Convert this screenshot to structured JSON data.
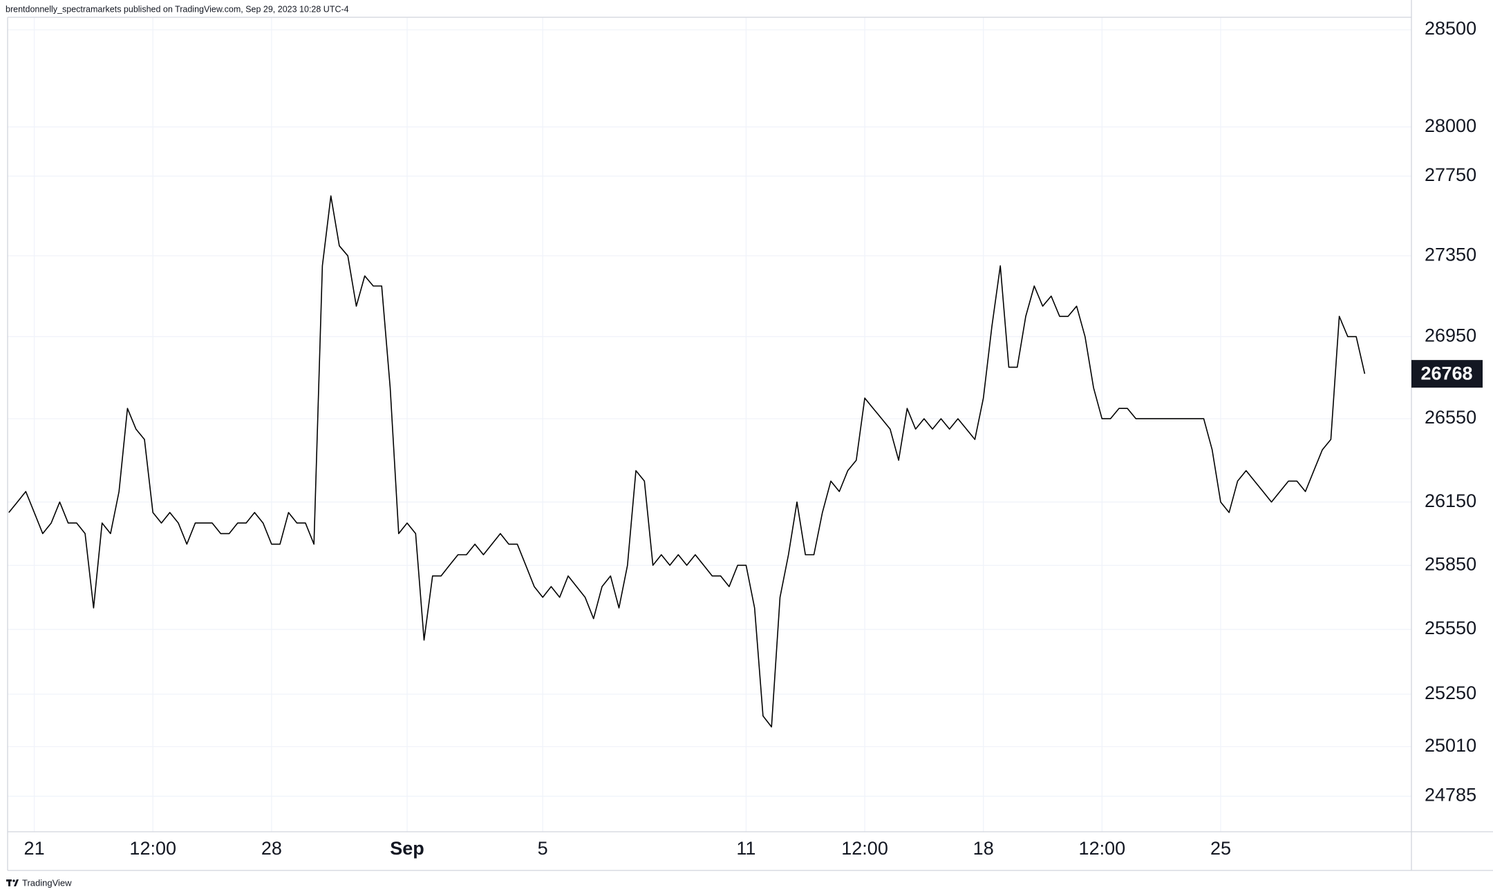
{
  "header": "brentdonnelly_spectramarkets published on TradingView.com, Sep 29, 2023 10:28 UTC-4",
  "footer": "TradingView",
  "chart_data": {
    "type": "line",
    "categories": [
      null,
      null,
      null,
      "21",
      null,
      null,
      null,
      null,
      null,
      null,
      null,
      null,
      null,
      null,
      null,
      null,
      null,
      "12:00",
      null,
      null,
      null,
      null,
      null,
      null,
      null,
      null,
      null,
      null,
      null,
      null,
      null,
      "28",
      null,
      null,
      null,
      null,
      null,
      null,
      null,
      null,
      null,
      null,
      null,
      null,
      null,
      null,
      null,
      "Sep",
      null,
      null,
      null,
      null,
      null,
      null,
      null,
      null,
      null,
      null,
      null,
      null,
      null,
      null,
      null,
      "5",
      null,
      null,
      null,
      null,
      null,
      null,
      null,
      null,
      null,
      null,
      null,
      null,
      null,
      null,
      null,
      null,
      null,
      null,
      null,
      null,
      null,
      null,
      null,
      "11",
      null,
      null,
      null,
      null,
      null,
      null,
      null,
      null,
      null,
      null,
      null,
      null,
      null,
      "12:00",
      null,
      null,
      null,
      null,
      null,
      null,
      null,
      null,
      null,
      null,
      null,
      null,
      null,
      "18",
      null,
      null,
      null,
      null,
      null,
      null,
      null,
      null,
      null,
      null,
      null,
      null,
      null,
      "12:00",
      null,
      null,
      null,
      null,
      null,
      null,
      null,
      null,
      null,
      null,
      null,
      null,
      null,
      "25",
      null,
      null,
      null,
      null,
      null,
      null,
      null,
      null,
      null,
      null,
      null,
      null,
      null,
      null,
      null,
      null,
      null
    ],
    "series": [
      {
        "color": "#000000",
        "values": [
          26100,
          26150,
          26200,
          26100,
          26000,
          26050,
          26150,
          26050,
          26050,
          26000,
          25650,
          26050,
          26000,
          26200,
          26600,
          26500,
          26450,
          26100,
          26050,
          26100,
          26050,
          25950,
          26050,
          26050,
          26050,
          26000,
          26000,
          26050,
          26050,
          26100,
          26050,
          25950,
          25950,
          26100,
          26050,
          26050,
          25950,
          27300,
          27650,
          27400,
          27350,
          27100,
          27250,
          27200,
          27200,
          26700,
          26000,
          26050,
          26000,
          25500,
          25800,
          25800,
          25850,
          25900,
          25900,
          25950,
          25900,
          25950,
          26000,
          25950,
          25950,
          25850,
          25750,
          25700,
          25750,
          25700,
          25800,
          25750,
          25700,
          25600,
          25750,
          25800,
          25650,
          25850,
          26300,
          26250,
          25850,
          25900,
          25850,
          25900,
          25850,
          25900,
          25850,
          25800,
          25800,
          25750,
          25850,
          25850,
          25650,
          25150,
          25100,
          25700,
          25900,
          26150,
          25900,
          25900,
          26100,
          26250,
          26200,
          26300,
          26350,
          26650,
          26600,
          26550,
          26500,
          26350,
          26600,
          26500,
          26550,
          26500,
          26550,
          26500,
          26550,
          26500,
          26450,
          26650,
          27000,
          27300,
          26800,
          26800,
          27050,
          27200,
          27100,
          27150,
          27050,
          27050,
          27100,
          26950,
          26700,
          26550,
          26550,
          26600,
          26600,
          26550,
          26550,
          26550,
          26550,
          26550,
          26550,
          26550,
          26550,
          26550,
          26400,
          26150,
          26100,
          26250,
          26300,
          26250,
          26200,
          26150,
          26200,
          26250,
          26250,
          26200,
          26300,
          26400,
          26450,
          27050,
          26950,
          26950,
          26768
        ]
      }
    ],
    "ylim": [
      24625,
      28565
    ],
    "yticks": [
      24785,
      25010,
      25250,
      25550,
      25850,
      26150,
      26550,
      26950,
      27350,
      27750,
      28000,
      28500
    ],
    "log": true,
    "grid": true
  }
}
